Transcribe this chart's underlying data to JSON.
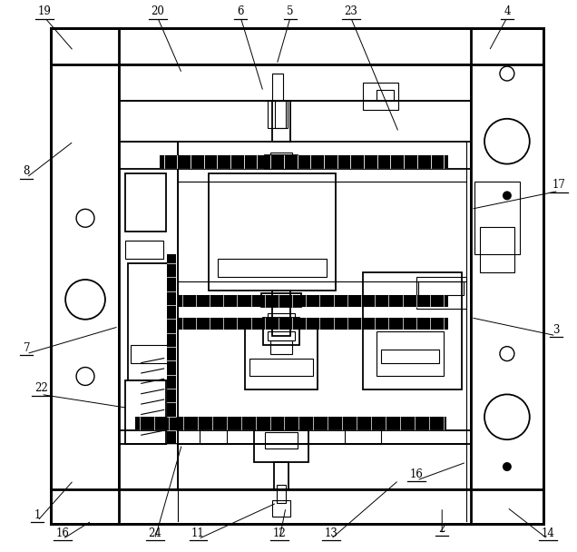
{
  "fig_width": 6.36,
  "fig_height": 6.08,
  "dpi": 100,
  "bg_color": "#ffffff",
  "line_color": "#000000",
  "lw_heavy": 2.0,
  "lw_med": 1.3,
  "lw_thin": 0.8
}
